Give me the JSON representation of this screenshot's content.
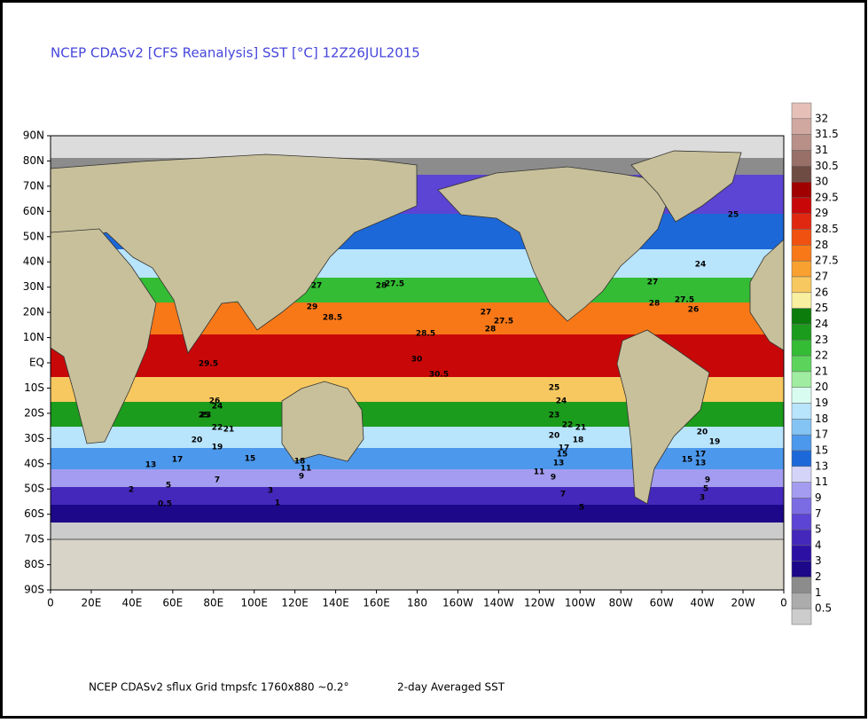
{
  "header": {
    "title": "NCEP CDASv2 [CFS Reanalysis] SST [°C] 12Z26JUL2015"
  },
  "map": {
    "lat_labels": [
      "90N",
      "80N",
      "70N",
      "60N",
      "50N",
      "40N",
      "30N",
      "20N",
      "10N",
      "EQ",
      "10S",
      "20S",
      "30S",
      "40S",
      "50S",
      "60S",
      "70S",
      "80S",
      "90S"
    ],
    "lon_labels": [
      "0",
      "20E",
      "40E",
      "60E",
      "80E",
      "100E",
      "120E",
      "140E",
      "160E",
      "180",
      "160W",
      "140W",
      "120W",
      "100W",
      "80W",
      "60W",
      "40W",
      "20W",
      "0"
    ],
    "contour_labels": [
      30,
      30.5,
      29.5,
      29,
      28.5,
      28,
      27.5,
      27,
      26,
      25,
      24,
      23,
      22,
      21,
      20,
      19,
      18,
      17,
      15,
      13,
      11,
      9,
      7,
      5,
      3,
      2,
      1,
      0.5,
      28.5,
      28,
      27.5,
      27,
      25,
      24,
      23,
      22,
      21,
      20,
      18,
      17,
      15,
      13,
      11,
      9,
      7,
      5,
      28,
      27.5,
      27,
      26,
      25,
      24,
      20,
      19,
      17,
      15,
      13,
      9,
      5,
      3
    ]
  },
  "colorbar": {
    "labels": [
      32,
      31.5,
      31,
      30.5,
      30,
      29.5,
      29,
      28.5,
      28,
      27.5,
      27,
      26,
      25,
      24,
      23,
      22,
      21,
      20,
      19,
      18,
      17,
      15,
      13,
      11,
      9,
      7,
      5,
      4,
      3,
      2,
      1,
      0.5
    ],
    "colors": [
      "#e6c0b8",
      "#d0a8a0",
      "#b89088",
      "#987068",
      "#6e4c44",
      "#a00000",
      "#c80808",
      "#e02810",
      "#f05010",
      "#f87818",
      "#f8a030",
      "#f8c860",
      "#f8f0a0",
      "#0c7c0c",
      "#1c9c1c",
      "#34bc34",
      "#5cd45c",
      "#a0eca0",
      "#d8fcf0",
      "#b8e4fc",
      "#84c4f4",
      "#4c98ec",
      "#1c68d8",
      "#d4d4f8",
      "#a49cf0",
      "#7c6ce4",
      "#5c44d4",
      "#4428bc",
      "#2c10a4",
      "#1c0888",
      "#8c8c8c",
      "#acacac",
      "#cccccc"
    ]
  },
  "footer": {
    "left": "NCEP CDASv2 sflux Grid tmpsfc 1760x880 ~0.2°",
    "right": "2-day Averaged SST"
  }
}
